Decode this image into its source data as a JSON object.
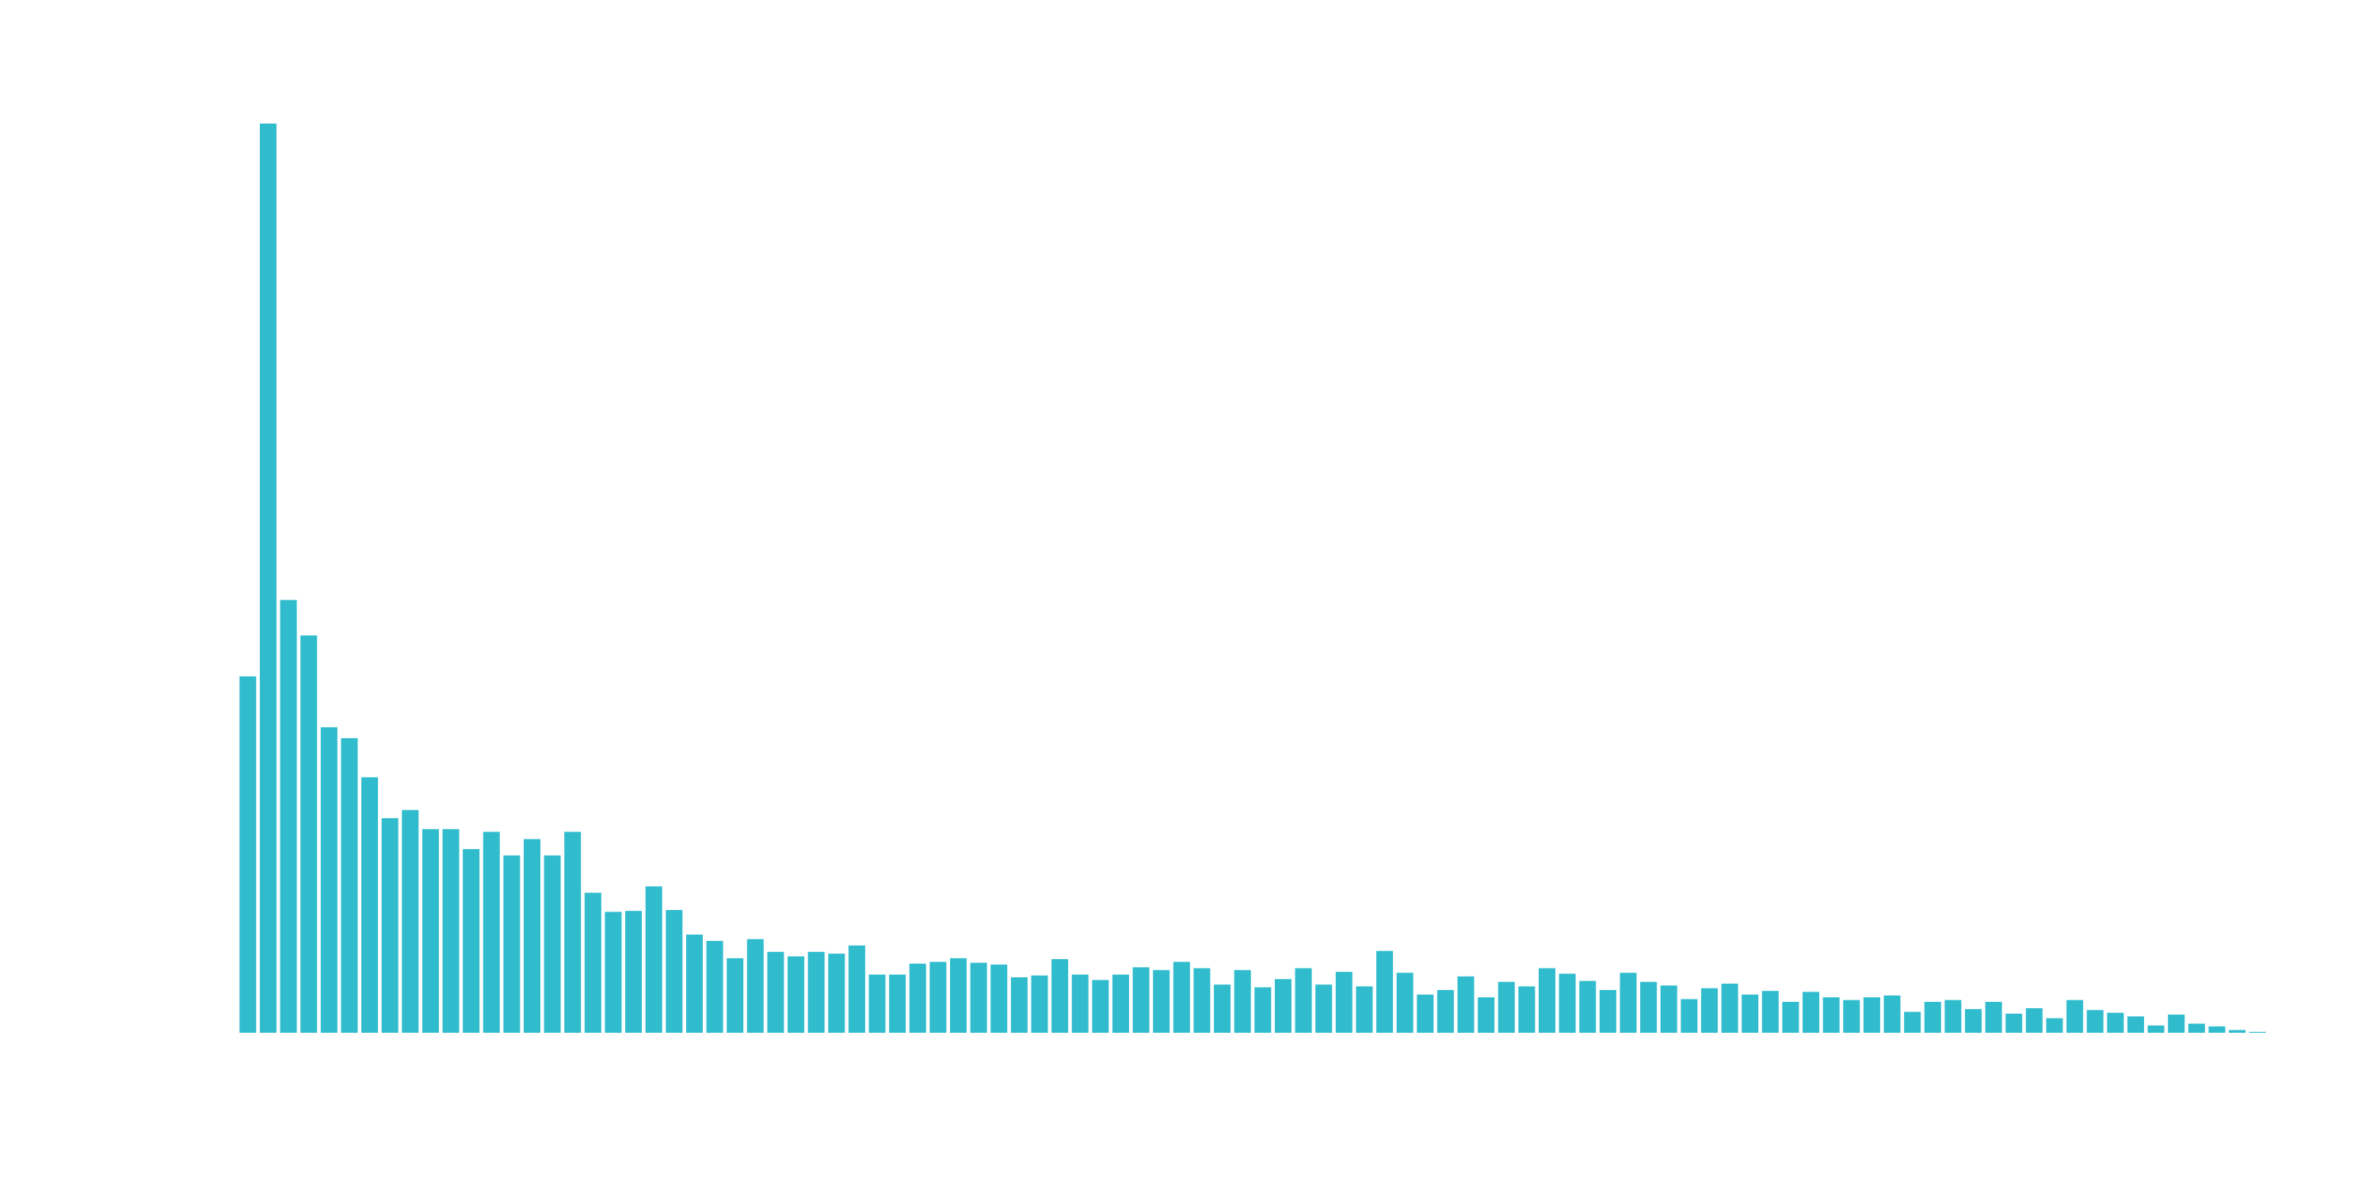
{
  "chart_data": {
    "type": "bar",
    "title": "",
    "xlabel": "",
    "ylabel": "",
    "grid": false,
    "legend": "none",
    "ylim": [
      0,
      100
    ],
    "color": "#30bccd",
    "values": [
      39.2,
      100.0,
      47.6,
      43.7,
      33.6,
      32.4,
      28.1,
      23.6,
      24.5,
      22.4,
      22.4,
      20.2,
      22.1,
      19.5,
      21.3,
      19.5,
      22.1,
      15.4,
      13.3,
      13.4,
      16.1,
      13.5,
      10.8,
      10.1,
      8.2,
      10.3,
      8.9,
      8.4,
      8.9,
      8.7,
      9.6,
      6.4,
      6.4,
      7.6,
      7.8,
      8.2,
      7.7,
      7.5,
      6.1,
      6.3,
      8.1,
      6.4,
      5.8,
      6.4,
      7.2,
      6.9,
      7.8,
      7.1,
      5.3,
      6.9,
      5.0,
      5.9,
      7.1,
      5.3,
      6.7,
      5.1,
      9.0,
      6.6,
      4.2,
      4.7,
      6.2,
      3.9,
      5.6,
      5.1,
      7.1,
      6.5,
      5.7,
      4.7,
      6.6,
      5.6,
      5.2,
      3.7,
      4.9,
      5.4,
      4.2,
      4.6,
      3.4,
      4.5,
      3.9,
      3.6,
      3.9,
      4.1,
      2.3,
      3.4,
      3.6,
      2.6,
      3.4,
      2.1,
      2.7,
      1.6,
      3.6,
      2.5,
      2.2,
      1.8,
      0.8,
      2.0,
      1.0,
      0.7,
      0.3,
      0.1
    ]
  }
}
